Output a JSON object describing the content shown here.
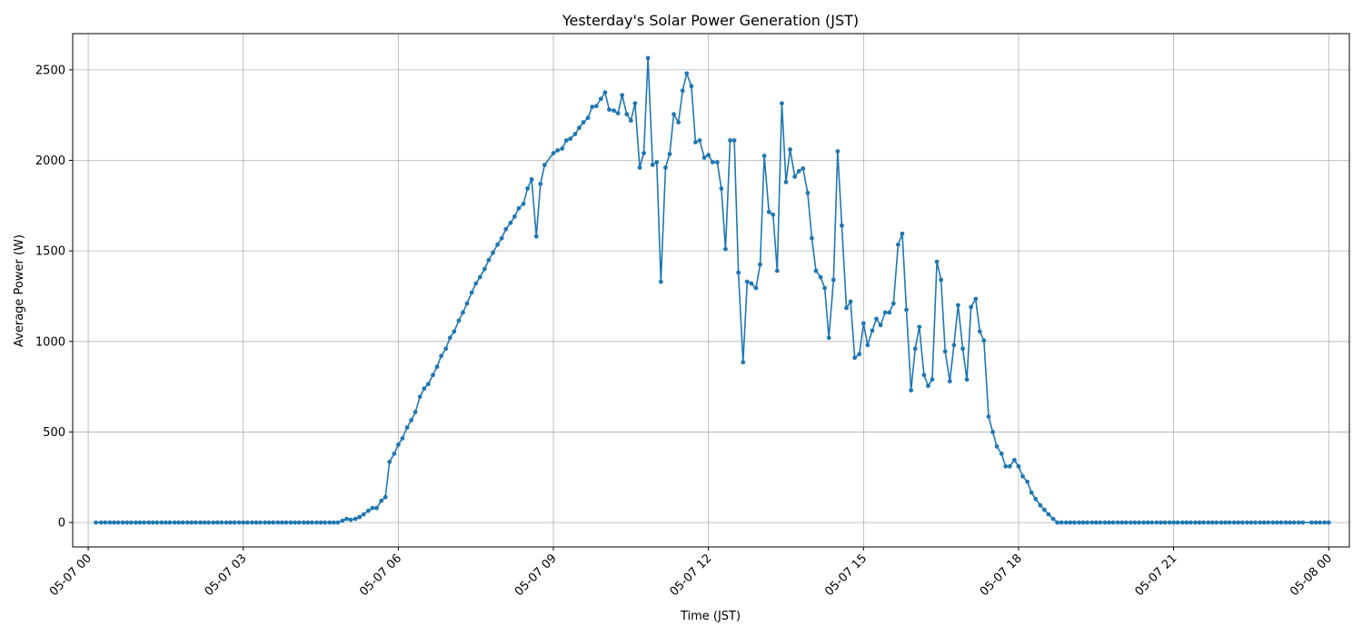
{
  "chart_data": {
    "type": "line",
    "title": "Yesterday's Solar Power Generation (JST)",
    "xlabel": "Time (JST)",
    "ylabel": "Average Power (W)",
    "x_unit": "hours since 05-07 00:00 JST",
    "xlim": [
      -0.3,
      24.4
    ],
    "ylim": [
      -135,
      2700
    ],
    "x_ticks": [
      {
        "value": 0,
        "label": "05-07 00"
      },
      {
        "value": 3,
        "label": "05-07 03"
      },
      {
        "value": 6,
        "label": "05-07 06"
      },
      {
        "value": 9,
        "label": "05-07 09"
      },
      {
        "value": 12,
        "label": "05-07 12"
      },
      {
        "value": 15,
        "label": "05-07 15"
      },
      {
        "value": 18,
        "label": "05-07 18"
      },
      {
        "value": 21,
        "label": "05-07 21"
      },
      {
        "value": 24,
        "label": "05-08 00"
      }
    ],
    "y_ticks": [
      {
        "value": 0,
        "label": "0"
      },
      {
        "value": 500,
        "label": "500"
      },
      {
        "value": 1000,
        "label": "1000"
      },
      {
        "value": 1500,
        "label": "1500"
      },
      {
        "value": 2000,
        "label": "2000"
      },
      {
        "value": 2500,
        "label": "2500"
      }
    ],
    "grid": true,
    "series": [
      {
        "color": "#1f77b4",
        "marker": "circle",
        "points": [
          [
            0.15,
            0
          ],
          [
            0.25,
            0
          ],
          [
            0.33,
            0
          ],
          [
            0.42,
            0
          ],
          [
            0.5,
            0
          ],
          [
            0.58,
            0
          ],
          [
            0.67,
            0
          ],
          [
            0.75,
            0
          ],
          [
            0.83,
            0
          ],
          [
            0.92,
            0
          ],
          [
            1.0,
            0
          ],
          [
            1.08,
            0
          ],
          [
            1.17,
            0
          ],
          [
            1.25,
            0
          ],
          [
            1.33,
            0
          ],
          [
            1.42,
            0
          ],
          [
            1.5,
            0
          ],
          [
            1.58,
            0
          ],
          [
            1.67,
            0
          ],
          [
            1.75,
            0
          ],
          [
            1.83,
            0
          ],
          [
            1.92,
            0
          ],
          [
            2.0,
            0
          ],
          [
            2.08,
            0
          ],
          [
            2.17,
            0
          ],
          [
            2.25,
            0
          ],
          [
            2.33,
            0
          ],
          [
            2.42,
            0
          ],
          [
            2.5,
            0
          ],
          [
            2.58,
            0
          ],
          [
            2.67,
            0
          ],
          [
            2.75,
            0
          ],
          [
            2.83,
            0
          ],
          [
            2.92,
            0
          ],
          [
            3.0,
            0
          ],
          [
            3.08,
            0
          ],
          [
            3.17,
            0
          ],
          [
            3.25,
            0
          ],
          [
            3.33,
            0
          ],
          [
            3.42,
            0
          ],
          [
            3.5,
            0
          ],
          [
            3.58,
            0
          ],
          [
            3.67,
            0
          ],
          [
            3.75,
            0
          ],
          [
            3.83,
            0
          ],
          [
            3.92,
            0
          ],
          [
            4.0,
            0
          ],
          [
            4.08,
            0
          ],
          [
            4.17,
            0
          ],
          [
            4.25,
            0
          ],
          [
            4.33,
            0
          ],
          [
            4.42,
            0
          ],
          [
            4.5,
            0
          ],
          [
            4.58,
            0
          ],
          [
            4.67,
            0
          ],
          [
            4.75,
            0
          ],
          [
            4.83,
            0
          ],
          [
            4.92,
            10
          ],
          [
            5.0,
            20
          ],
          [
            5.08,
            15
          ],
          [
            5.17,
            20
          ],
          [
            5.25,
            30
          ],
          [
            5.33,
            45
          ],
          [
            5.42,
            65
          ],
          [
            5.5,
            80
          ],
          [
            5.58,
            80
          ],
          [
            5.67,
            120
          ],
          [
            5.75,
            140
          ],
          [
            5.83,
            335
          ],
          [
            5.92,
            380
          ],
          [
            6.0,
            430
          ],
          [
            6.08,
            465
          ],
          [
            6.17,
            525
          ],
          [
            6.25,
            565
          ],
          [
            6.33,
            610
          ],
          [
            6.42,
            695
          ],
          [
            6.5,
            740
          ],
          [
            6.58,
            765
          ],
          [
            6.67,
            815
          ],
          [
            6.75,
            860
          ],
          [
            6.83,
            920
          ],
          [
            6.92,
            960
          ],
          [
            7.0,
            1020
          ],
          [
            7.08,
            1055
          ],
          [
            7.17,
            1115
          ],
          [
            7.25,
            1160
          ],
          [
            7.33,
            1210
          ],
          [
            7.42,
            1270
          ],
          [
            7.5,
            1320
          ],
          [
            7.58,
            1355
          ],
          [
            7.67,
            1400
          ],
          [
            7.75,
            1450
          ],
          [
            7.83,
            1490
          ],
          [
            7.92,
            1535
          ],
          [
            8.0,
            1570
          ],
          [
            8.08,
            1620
          ],
          [
            8.17,
            1655
          ],
          [
            8.25,
            1690
          ],
          [
            8.33,
            1735
          ],
          [
            8.42,
            1760
          ],
          [
            8.5,
            1845
          ],
          [
            8.58,
            1895
          ],
          [
            8.67,
            1580
          ],
          [
            8.75,
            1870
          ],
          [
            8.83,
            1975
          ],
          [
            9.0,
            2040
          ],
          [
            9.08,
            2055
          ],
          [
            9.17,
            2065
          ],
          [
            9.25,
            2110
          ],
          [
            9.33,
            2120
          ],
          [
            9.42,
            2145
          ],
          [
            9.5,
            2180
          ],
          [
            9.58,
            2210
          ],
          [
            9.67,
            2235
          ],
          [
            9.75,
            2295
          ],
          [
            9.83,
            2300
          ],
          [
            9.92,
            2340
          ],
          [
            10.0,
            2375
          ],
          [
            10.08,
            2280
          ],
          [
            10.17,
            2275
          ],
          [
            10.25,
            2260
          ],
          [
            10.33,
            2360
          ],
          [
            10.42,
            2255
          ],
          [
            10.5,
            2220
          ],
          [
            10.58,
            2315
          ],
          [
            10.67,
            1960
          ],
          [
            10.75,
            2040
          ],
          [
            10.83,
            2565
          ],
          [
            10.92,
            1975
          ],
          [
            11.0,
            1990
          ],
          [
            11.08,
            1330
          ],
          [
            11.17,
            1960
          ],
          [
            11.25,
            2035
          ],
          [
            11.33,
            2255
          ],
          [
            11.42,
            2210
          ],
          [
            11.5,
            2385
          ],
          [
            11.58,
            2480
          ],
          [
            11.67,
            2410
          ],
          [
            11.75,
            2100
          ],
          [
            11.83,
            2110
          ],
          [
            11.92,
            2015
          ],
          [
            12.0,
            2030
          ],
          [
            12.08,
            1990
          ],
          [
            12.17,
            1990
          ],
          [
            12.25,
            1845
          ],
          [
            12.33,
            1510
          ],
          [
            12.42,
            2110
          ],
          [
            12.5,
            2110
          ],
          [
            12.58,
            1380
          ],
          [
            12.67,
            885
          ],
          [
            12.75,
            1330
          ],
          [
            12.83,
            1320
          ],
          [
            12.92,
            1295
          ],
          [
            13.0,
            1425
          ],
          [
            13.08,
            2025
          ],
          [
            13.17,
            1715
          ],
          [
            13.25,
            1700
          ],
          [
            13.33,
            1390
          ],
          [
            13.42,
            2315
          ],
          [
            13.5,
            1880
          ],
          [
            13.58,
            2060
          ],
          [
            13.67,
            1910
          ],
          [
            13.75,
            1940
          ],
          [
            13.83,
            1955
          ],
          [
            13.92,
            1820
          ],
          [
            14.0,
            1570
          ],
          [
            14.08,
            1390
          ],
          [
            14.17,
            1355
          ],
          [
            14.25,
            1295
          ],
          [
            14.33,
            1020
          ],
          [
            14.42,
            1340
          ],
          [
            14.5,
            2050
          ],
          [
            14.58,
            1640
          ],
          [
            14.67,
            1185
          ],
          [
            14.75,
            1220
          ],
          [
            14.83,
            910
          ],
          [
            14.92,
            930
          ],
          [
            15.0,
            1100
          ],
          [
            15.08,
            980
          ],
          [
            15.17,
            1060
          ],
          [
            15.25,
            1125
          ],
          [
            15.33,
            1090
          ],
          [
            15.42,
            1160
          ],
          [
            15.5,
            1160
          ],
          [
            15.58,
            1210
          ],
          [
            15.67,
            1535
          ],
          [
            15.75,
            1595
          ],
          [
            15.83,
            1175
          ],
          [
            15.92,
            730
          ],
          [
            16.0,
            960
          ],
          [
            16.08,
            1080
          ],
          [
            16.17,
            815
          ],
          [
            16.25,
            755
          ],
          [
            16.33,
            790
          ],
          [
            16.42,
            1440
          ],
          [
            16.5,
            1340
          ],
          [
            16.58,
            945
          ],
          [
            16.67,
            780
          ],
          [
            16.75,
            980
          ],
          [
            16.83,
            1200
          ],
          [
            16.92,
            960
          ],
          [
            17.0,
            790
          ],
          [
            17.08,
            1190
          ],
          [
            17.17,
            1235
          ],
          [
            17.25,
            1055
          ],
          [
            17.33,
            1005
          ],
          [
            17.42,
            585
          ],
          [
            17.5,
            500
          ],
          [
            17.58,
            420
          ],
          [
            17.67,
            380
          ],
          [
            17.75,
            310
          ],
          [
            17.83,
            310
          ],
          [
            17.92,
            345
          ],
          [
            18.0,
            310
          ],
          [
            18.08,
            255
          ],
          [
            18.17,
            225
          ],
          [
            18.25,
            165
          ],
          [
            18.33,
            130
          ],
          [
            18.42,
            95
          ],
          [
            18.5,
            70
          ],
          [
            18.58,
            45
          ],
          [
            18.67,
            20
          ],
          [
            18.75,
            0
          ],
          [
            18.83,
            0
          ],
          [
            18.92,
            0
          ],
          [
            19.0,
            0
          ],
          [
            19.08,
            0
          ],
          [
            19.17,
            0
          ],
          [
            19.25,
            0
          ],
          [
            19.33,
            0
          ],
          [
            19.42,
            0
          ],
          [
            19.5,
            0
          ],
          [
            19.58,
            0
          ],
          [
            19.67,
            0
          ],
          [
            19.75,
            0
          ],
          [
            19.83,
            0
          ],
          [
            19.92,
            0
          ],
          [
            20.0,
            0
          ],
          [
            20.08,
            0
          ],
          [
            20.17,
            0
          ],
          [
            20.25,
            0
          ],
          [
            20.33,
            0
          ],
          [
            20.42,
            0
          ],
          [
            20.5,
            0
          ],
          [
            20.58,
            0
          ],
          [
            20.67,
            0
          ],
          [
            20.75,
            0
          ],
          [
            20.83,
            0
          ],
          [
            20.92,
            0
          ],
          [
            21.0,
            0
          ],
          [
            21.08,
            0
          ],
          [
            21.17,
            0
          ],
          [
            21.25,
            0
          ],
          [
            21.33,
            0
          ],
          [
            21.42,
            0
          ],
          [
            21.5,
            0
          ],
          [
            21.58,
            0
          ],
          [
            21.67,
            0
          ],
          [
            21.75,
            0
          ],
          [
            21.83,
            0
          ],
          [
            21.92,
            0
          ],
          [
            22.0,
            0
          ],
          [
            22.08,
            0
          ],
          [
            22.17,
            0
          ],
          [
            22.25,
            0
          ],
          [
            22.33,
            0
          ],
          [
            22.42,
            0
          ],
          [
            22.5,
            0
          ],
          [
            22.58,
            0
          ],
          [
            22.67,
            0
          ],
          [
            22.75,
            0
          ],
          [
            22.83,
            0
          ],
          [
            22.92,
            0
          ],
          [
            23.0,
            0
          ],
          [
            23.08,
            0
          ],
          [
            23.17,
            0
          ],
          [
            23.25,
            0
          ],
          [
            23.33,
            0
          ],
          [
            23.42,
            0
          ],
          [
            23.5,
            0
          ],
          [
            23.67,
            0
          ],
          [
            23.75,
            0
          ],
          [
            23.83,
            0
          ],
          [
            23.92,
            0
          ],
          [
            24.0,
            0
          ]
        ]
      }
    ]
  }
}
